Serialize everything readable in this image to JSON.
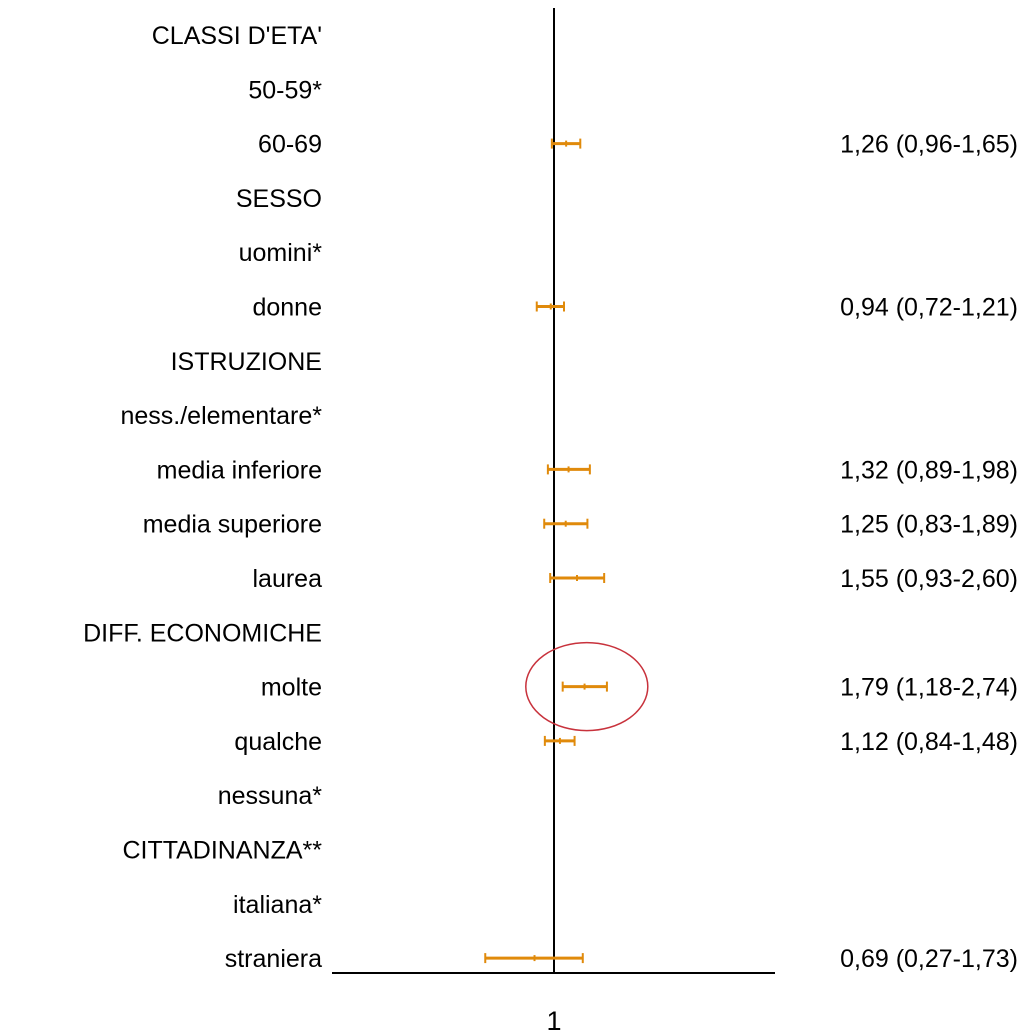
{
  "chart_data": {
    "type": "forest",
    "reference_value": 1,
    "x_tick_labels": [
      "1"
    ],
    "x_scale": "log",
    "x_range": [
      0.27,
      2.74
    ],
    "rows": [
      {
        "label": "CLASSI D'ETA'",
        "kind": "header"
      },
      {
        "label": "50-59*",
        "kind": "reference"
      },
      {
        "label": "60-69",
        "kind": "estimate",
        "or": 1.26,
        "lo": 0.96,
        "hi": 1.65,
        "text": "1,26 (0,96-1,65)"
      },
      {
        "label": "SESSO",
        "kind": "header"
      },
      {
        "label": "uomini*",
        "kind": "reference"
      },
      {
        "label": "donne",
        "kind": "estimate",
        "or": 0.94,
        "lo": 0.72,
        "hi": 1.21,
        "text": "0,94 (0,72-1,21)"
      },
      {
        "label": "ISTRUZIONE",
        "kind": "header"
      },
      {
        "label": "ness./elementare*",
        "kind": "reference"
      },
      {
        "label": "media inferiore",
        "kind": "estimate",
        "or": 1.32,
        "lo": 0.89,
        "hi": 1.98,
        "text": "1,32 (0,89-1,98)"
      },
      {
        "label": "media superiore",
        "kind": "estimate",
        "or": 1.25,
        "lo": 0.83,
        "hi": 1.89,
        "text": "1,25 (0,83-1,89)"
      },
      {
        "label": "laurea",
        "kind": "estimate",
        "or": 1.55,
        "lo": 0.93,
        "hi": 2.6,
        "text": "1,55 (0,93-2,60)"
      },
      {
        "label": "DIFF. ECONOMICHE",
        "kind": "header"
      },
      {
        "label": "molte",
        "kind": "estimate",
        "or": 1.79,
        "lo": 1.18,
        "hi": 2.74,
        "text": "1,79 (1,18-2,74)",
        "highlighted": true
      },
      {
        "label": "qualche",
        "kind": "estimate",
        "or": 1.12,
        "lo": 0.84,
        "hi": 1.48,
        "text": "1,12 (0,84-1,48)"
      },
      {
        "label": "nessuna*",
        "kind": "reference"
      },
      {
        "label": "CITTADINANZA**",
        "kind": "header"
      },
      {
        "label": "italiana*",
        "kind": "reference"
      },
      {
        "label": "straniera",
        "kind": "estimate",
        "or": 0.69,
        "lo": 0.27,
        "hi": 1.73,
        "text": "0,69 (0,27-1,73)"
      }
    ],
    "colors": {
      "interval": "#e08a0b",
      "highlight_ring": "#c8323c",
      "axis": "#000000",
      "text": "#000000"
    }
  }
}
